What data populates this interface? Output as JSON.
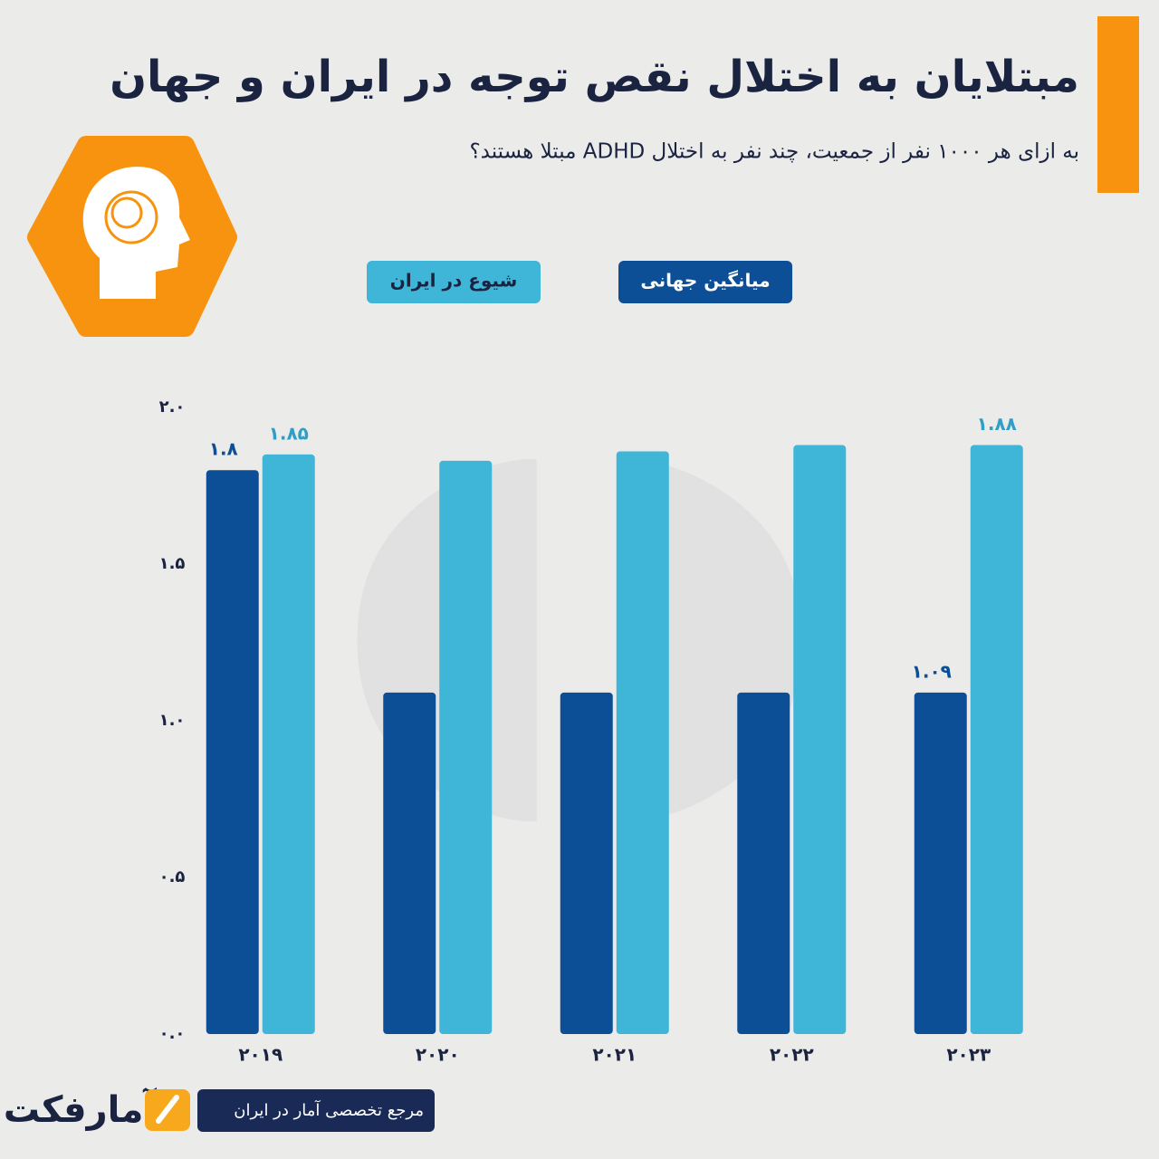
{
  "chart_data": {
    "type": "bar",
    "title": "مبتلایان به اختلال نقص توجه در ایران و جهان",
    "subtitle": "به ازای هر ۱۰۰۰ نفر از جمعیت، چند نفر به اختلال ADHD مبتلا هستند؟",
    "categories": [
      "۲۰۱۹",
      "۲۰۲۰",
      "۲۰۲۱",
      "۲۰۲۲",
      "۲۰۲۳"
    ],
    "series": [
      {
        "name": "میانگین جهانی",
        "color": "#0d4f97",
        "values": [
          1.8,
          1.09,
          1.09,
          1.09,
          1.09
        ],
        "value_labels": [
          "۱.۸",
          null,
          null,
          null,
          "۱.۰۹"
        ]
      },
      {
        "name": "شیوع در ایران",
        "color": "#3fb5d8",
        "values": [
          1.85,
          1.83,
          1.86,
          1.88,
          1.88
        ],
        "value_labels": [
          "۱.۸۵",
          null,
          null,
          null,
          "۱.۸۸"
        ]
      }
    ],
    "ylim": [
      0,
      2
    ],
    "yticks": [
      {
        "value": 0,
        "label": "۰.۰"
      },
      {
        "value": 0.5,
        "label": "۰.۵"
      },
      {
        "value": 1,
        "label": "۱.۰"
      },
      {
        "value": 1.5,
        "label": "۱.۵"
      },
      {
        "value": 2,
        "label": "۲.۰"
      }
    ],
    "grid": false,
    "brand": "آمارفکت",
    "brand_tagline": "مرجع تخصصی آمار در ایران"
  }
}
